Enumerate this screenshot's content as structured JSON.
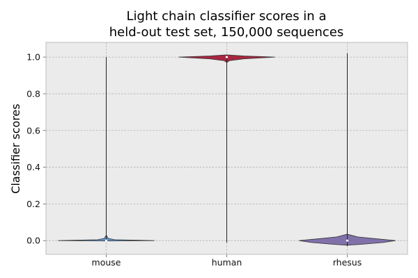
{
  "chart_data": {
    "type": "violin",
    "title": [
      "Light chain classifier scores in a",
      "held-out test set, 150,000 sequences"
    ],
    "xlabel": "",
    "ylabel": "Classifier scores",
    "categories": [
      "mouse",
      "human",
      "rhesus"
    ],
    "ylim": [
      -0.075,
      1.08
    ],
    "yticks": [
      0.0,
      0.2,
      0.4,
      0.6,
      0.8,
      1.0
    ],
    "ytick_labels": [
      "0.0",
      "0.2",
      "0.4",
      "0.6",
      "0.8",
      "1.0"
    ],
    "grid": true,
    "background": "#ebebeb",
    "violins": [
      {
        "category": "mouse",
        "color": "#5b8fc7",
        "range": [
          0.0,
          1.0
        ],
        "median": 0.0,
        "profile": [
          [
            -0.002,
            0.0
          ],
          [
            0.0,
            1.0
          ],
          [
            0.005,
            0.18
          ],
          [
            0.012,
            0.04
          ],
          [
            0.03,
            0.0
          ]
        ]
      },
      {
        "category": "human",
        "color": "#a51c37",
        "range": [
          -0.01,
          1.0
        ],
        "median": 1.0,
        "profile": [
          [
            0.97,
            0.0
          ],
          [
            0.98,
            0.05
          ],
          [
            0.99,
            0.35
          ],
          [
            1.0,
            1.0
          ],
          [
            1.006,
            0.35
          ],
          [
            1.012,
            0.0
          ]
        ]
      },
      {
        "category": "rhesus",
        "color": "#7b6aa8",
        "range": [
          -0.03,
          1.02
        ],
        "median": 0.0,
        "profile": [
          [
            -0.025,
            0.0
          ],
          [
            -0.02,
            0.3
          ],
          [
            -0.01,
            0.75
          ],
          [
            0.0,
            1.0
          ],
          [
            0.01,
            0.6
          ],
          [
            0.02,
            0.22
          ],
          [
            0.035,
            0.0
          ]
        ]
      }
    ]
  }
}
